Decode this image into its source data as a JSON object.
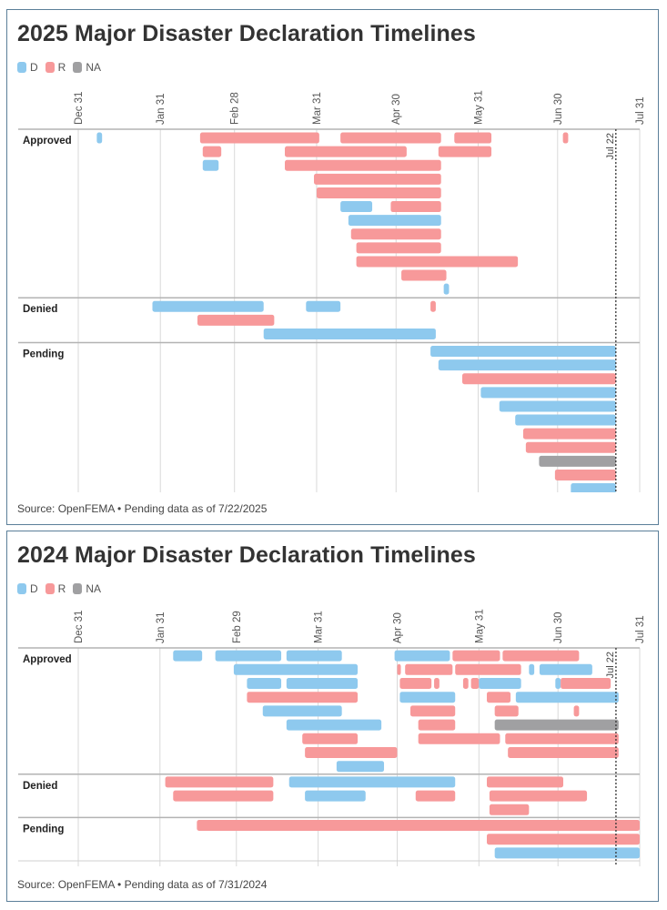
{
  "colors": {
    "D": "#8ec9ee",
    "R": "#f7999a",
    "NA": "#a0a0a2"
  },
  "chart_data": [
    {
      "type": "bar",
      "title": "2025 Major Disaster Declaration Timelines",
      "legend": [
        "D",
        "R",
        "NA"
      ],
      "legend_placement": "top-left",
      "x_tick_labels": [
        "Dec 31",
        "Jan 31",
        "Feb 28",
        "Mar 31",
        "Apr 30",
        "May 31",
        "Jun 30",
        "Jul 31"
      ],
      "x_ticks": [
        "2024-12-31",
        "2025-01-31",
        "2025-02-28",
        "2025-03-31",
        "2025-04-30",
        "2025-05-31",
        "2025-06-30",
        "2025-07-31"
      ],
      "marker": {
        "date": "2025-07-22",
        "label": "Jul 22"
      },
      "grid": true,
      "source": "Source: OpenFEMA • Pending data as of 7/22/2025",
      "groups": [
        {
          "label": "Approved",
          "rows": [
            [
              {
                "party": "D",
                "start": "2025-01-07",
                "end": "2025-01-09"
              },
              {
                "party": "R",
                "start": "2025-02-15",
                "end": "2025-04-01"
              },
              {
                "party": "R",
                "start": "2025-04-09",
                "end": "2025-05-17"
              },
              {
                "party": "R",
                "start": "2025-05-22",
                "end": "2025-06-05"
              },
              {
                "party": "R",
                "start": "2025-07-02",
                "end": "2025-07-04"
              }
            ],
            [
              {
                "party": "R",
                "start": "2025-02-16",
                "end": "2025-02-23"
              },
              {
                "party": "R",
                "start": "2025-03-19",
                "end": "2025-05-04"
              },
              {
                "party": "R",
                "start": "2025-05-16",
                "end": "2025-06-05"
              }
            ],
            [
              {
                "party": "D",
                "start": "2025-02-16",
                "end": "2025-02-22"
              },
              {
                "party": "R",
                "start": "2025-03-19",
                "end": "2025-05-17"
              }
            ],
            [
              {
                "party": "R",
                "start": "2025-03-30",
                "end": "2025-05-17"
              }
            ],
            [
              {
                "party": "R",
                "start": "2025-03-31",
                "end": "2025-05-17"
              }
            ],
            [
              {
                "party": "D",
                "start": "2025-04-09",
                "end": "2025-04-21"
              },
              {
                "party": "R",
                "start": "2025-04-28",
                "end": "2025-05-17"
              }
            ],
            [
              {
                "party": "D",
                "start": "2025-04-12",
                "end": "2025-05-17"
              }
            ],
            [
              {
                "party": "R",
                "start": "2025-04-13",
                "end": "2025-05-17"
              }
            ],
            [
              {
                "party": "R",
                "start": "2025-04-15",
                "end": "2025-05-17"
              }
            ],
            [
              {
                "party": "R",
                "start": "2025-04-15",
                "end": "2025-06-15"
              }
            ],
            [
              {
                "party": "R",
                "start": "2025-05-02",
                "end": "2025-05-19"
              }
            ],
            [
              {
                "party": "D",
                "start": "2025-05-18",
                "end": "2025-05-20"
              }
            ]
          ]
        },
        {
          "label": "Denied",
          "rows": [
            [
              {
                "party": "D",
                "start": "2025-01-28",
                "end": "2025-03-11"
              },
              {
                "party": "D",
                "start": "2025-03-27",
                "end": "2025-04-09"
              },
              {
                "party": "R",
                "start": "2025-05-13",
                "end": "2025-05-15"
              }
            ],
            [
              {
                "party": "R",
                "start": "2025-02-14",
                "end": "2025-03-15"
              }
            ],
            [
              {
                "party": "D",
                "start": "2025-03-11",
                "end": "2025-05-15"
              }
            ]
          ]
        },
        {
          "label": "Pending",
          "rows": [
            [
              {
                "party": "D",
                "start": "2025-05-13",
                "end": "2025-07-22"
              }
            ],
            [
              {
                "party": "D",
                "start": "2025-05-16",
                "end": "2025-07-22"
              }
            ],
            [
              {
                "party": "R",
                "start": "2025-05-25",
                "end": "2025-07-22"
              }
            ],
            [
              {
                "party": "D",
                "start": "2025-06-01",
                "end": "2025-07-22"
              }
            ],
            [
              {
                "party": "D",
                "start": "2025-06-08",
                "end": "2025-07-22"
              }
            ],
            [
              {
                "party": "D",
                "start": "2025-06-14",
                "end": "2025-07-22"
              }
            ],
            [
              {
                "party": "R",
                "start": "2025-06-17",
                "end": "2025-07-22"
              }
            ],
            [
              {
                "party": "R",
                "start": "2025-06-18",
                "end": "2025-07-22"
              }
            ],
            [
              {
                "party": "NA",
                "start": "2025-06-23",
                "end": "2025-07-22"
              }
            ],
            [
              {
                "party": "R",
                "start": "2025-06-29",
                "end": "2025-07-22"
              }
            ],
            [
              {
                "party": "D",
                "start": "2025-07-05",
                "end": "2025-07-22"
              }
            ]
          ]
        }
      ]
    },
    {
      "type": "bar",
      "title": "2024 Major Disaster Declaration Timelines",
      "legend": [
        "D",
        "R",
        "NA"
      ],
      "legend_placement": "top-left",
      "x_tick_labels": [
        "Dec 31",
        "Jan 31",
        "Feb 29",
        "Mar 31",
        "Apr 30",
        "May 31",
        "Jun 30",
        "Jul 31"
      ],
      "x_ticks": [
        "2023-12-31",
        "2024-01-31",
        "2024-02-29",
        "2024-03-31",
        "2024-04-30",
        "2024-05-31",
        "2024-06-30",
        "2024-07-31"
      ],
      "marker": {
        "date": "2024-07-22",
        "label": "Jul 22"
      },
      "grid": true,
      "source": "Source: OpenFEMA • Pending data as of 7/31/2024",
      "groups": [
        {
          "label": "Approved",
          "rows": [
            [
              {
                "party": "D",
                "start": "2024-02-05",
                "end": "2024-02-16"
              },
              {
                "party": "D",
                "start": "2024-02-21",
                "end": "2024-03-17"
              },
              {
                "party": "D",
                "start": "2024-03-19",
                "end": "2024-04-09"
              },
              {
                "party": "D",
                "start": "2024-04-29",
                "end": "2024-05-20"
              },
              {
                "party": "R",
                "start": "2024-05-21",
                "end": "2024-06-08"
              },
              {
                "party": "R",
                "start": "2024-06-09",
                "end": "2024-07-08"
              }
            ],
            [
              {
                "party": "D",
                "start": "2024-02-28",
                "end": "2024-04-15"
              },
              {
                "party": "R",
                "start": "2024-04-30",
                "end": "2024-05-01"
              },
              {
                "party": "R",
                "start": "2024-05-03",
                "end": "2024-05-21"
              },
              {
                "party": "R",
                "start": "2024-05-22",
                "end": "2024-06-16"
              },
              {
                "party": "D",
                "start": "2024-06-19",
                "end": "2024-06-21"
              },
              {
                "party": "D",
                "start": "2024-06-23",
                "end": "2024-07-13"
              }
            ],
            [
              {
                "party": "D",
                "start": "2024-03-04",
                "end": "2024-03-17"
              },
              {
                "party": "D",
                "start": "2024-03-19",
                "end": "2024-04-15"
              },
              {
                "party": "R",
                "start": "2024-05-01",
                "end": "2024-05-13"
              },
              {
                "party": "R",
                "start": "2024-05-14",
                "end": "2024-05-16"
              },
              {
                "party": "R",
                "start": "2024-05-25",
                "end": "2024-05-27"
              },
              {
                "party": "R",
                "start": "2024-05-28",
                "end": "2024-05-31"
              },
              {
                "party": "D",
                "start": "2024-05-31",
                "end": "2024-06-16"
              },
              {
                "party": "D",
                "start": "2024-06-29",
                "end": "2024-07-01"
              },
              {
                "party": "R",
                "start": "2024-07-01",
                "end": "2024-07-20"
              }
            ],
            [
              {
                "party": "R",
                "start": "2024-03-04",
                "end": "2024-04-15"
              },
              {
                "party": "D",
                "start": "2024-05-01",
                "end": "2024-05-22"
              },
              {
                "party": "R",
                "start": "2024-06-03",
                "end": "2024-06-12"
              },
              {
                "party": "D",
                "start": "2024-06-14",
                "end": "2024-07-23"
              }
            ],
            [
              {
                "party": "D",
                "start": "2024-03-10",
                "end": "2024-04-09"
              },
              {
                "party": "R",
                "start": "2024-05-05",
                "end": "2024-05-22"
              },
              {
                "party": "R",
                "start": "2024-06-06",
                "end": "2024-06-15"
              },
              {
                "party": "R",
                "start": "2024-07-06",
                "end": "2024-07-08"
              }
            ],
            [
              {
                "party": "D",
                "start": "2024-03-19",
                "end": "2024-04-24"
              },
              {
                "party": "R",
                "start": "2024-05-08",
                "end": "2024-05-22"
              },
              {
                "party": "NA",
                "start": "2024-06-06",
                "end": "2024-07-23"
              }
            ],
            [
              {
                "party": "R",
                "start": "2024-03-25",
                "end": "2024-04-15"
              },
              {
                "party": "R",
                "start": "2024-05-08",
                "end": "2024-06-08"
              },
              {
                "party": "R",
                "start": "2024-06-10",
                "end": "2024-07-23"
              }
            ],
            [
              {
                "party": "R",
                "start": "2024-03-26",
                "end": "2024-04-30"
              },
              {
                "party": "R",
                "start": "2024-06-11",
                "end": "2024-07-23"
              }
            ],
            [
              {
                "party": "D",
                "start": "2024-04-07",
                "end": "2024-04-25"
              }
            ]
          ]
        },
        {
          "label": "Denied",
          "rows": [
            [
              {
                "party": "R",
                "start": "2024-02-02",
                "end": "2024-03-14"
              },
              {
                "party": "D",
                "start": "2024-03-20",
                "end": "2024-05-22"
              },
              {
                "party": "R",
                "start": "2024-06-03",
                "end": "2024-07-02"
              }
            ],
            [
              {
                "party": "R",
                "start": "2024-02-05",
                "end": "2024-03-14"
              },
              {
                "party": "D",
                "start": "2024-03-26",
                "end": "2024-04-18"
              },
              {
                "party": "R",
                "start": "2024-05-07",
                "end": "2024-05-22"
              },
              {
                "party": "R",
                "start": "2024-06-04",
                "end": "2024-07-11"
              }
            ],
            [
              {
                "party": "R",
                "start": "2024-06-04",
                "end": "2024-06-19"
              }
            ]
          ]
        },
        {
          "label": "Pending",
          "rows": [
            [
              {
                "party": "R",
                "start": "2024-02-14",
                "end": "2024-07-31"
              }
            ],
            [
              {
                "party": "R",
                "start": "2024-06-03",
                "end": "2024-07-31"
              }
            ],
            [
              {
                "party": "D",
                "start": "2024-06-06",
                "end": "2024-07-31"
              }
            ]
          ]
        }
      ]
    }
  ]
}
